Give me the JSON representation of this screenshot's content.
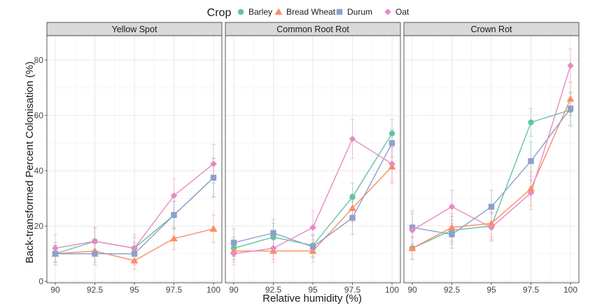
{
  "chart_data": {
    "type": "line",
    "legend": {
      "title": "Crop",
      "placement": "top",
      "entries": [
        "Barley",
        "Bread Wheat",
        "Durum",
        "Oat"
      ]
    },
    "colors": {
      "Barley": "#66c2a5",
      "Bread Wheat": "#fc8d62",
      "Durum": "#8da0cb",
      "Oat": "#e78ac3"
    },
    "markers": {
      "Barley": "circle",
      "Bread Wheat": "triangle",
      "Durum": "square",
      "Oat": "diamond"
    },
    "xlabel": "Relative humidity (%)",
    "ylabel": "Back-transformed Percent Colonisation (%)",
    "x": [
      90,
      92.5,
      95,
      97.5,
      100
    ],
    "x_tick_labels": [
      "90",
      "92.5",
      "95",
      "97.5",
      "100"
    ],
    "y_ticks": [
      0,
      20,
      40,
      60,
      80
    ],
    "y_tick_labels": [
      "0",
      "20",
      "40",
      "60",
      "80"
    ],
    "ylim": [
      0,
      90
    ],
    "grid": true,
    "facets": [
      {
        "title": "Yellow Spot",
        "series": [
          {
            "name": "Barley",
            "values": [
              10,
              14.5,
              12,
              24,
              37.5
            ],
            "err": [
              4,
              5,
              4,
              5,
              7
            ]
          },
          {
            "name": "Bread Wheat",
            "values": [
              10,
              11,
              7.5,
              15.5,
              19
            ],
            "err": [
              3,
              4,
              3,
              4,
              5
            ]
          },
          {
            "name": "Durum",
            "values": [
              10,
              10,
              10,
              24,
              37.5
            ],
            "err": [
              3,
              4,
              4,
              5,
              7
            ]
          },
          {
            "name": "Oat",
            "values": [
              12,
              14.5,
              12,
              31,
              42.5
            ],
            "err": [
              5,
              5,
              5,
              6,
              7
            ]
          }
        ]
      },
      {
        "title": "Common Root Rot",
        "series": [
          {
            "name": "Barley",
            "values": [
              12,
              16,
              13,
              30.5,
              53.5
            ],
            "err": [
              4,
              5,
              4,
              5,
              5
            ]
          },
          {
            "name": "Bread Wheat",
            "values": [
              11,
              11,
              11,
              26.5,
              41.5
            ],
            "err": [
              4,
              4,
              4,
              5,
              6
            ]
          },
          {
            "name": "Durum",
            "values": [
              14,
              17.5,
              12.5,
              23,
              50
            ],
            "err": [
              5,
              5,
              4,
              6,
              5
            ]
          },
          {
            "name": "Oat",
            "values": [
              10,
              12,
              19.5,
              51.5,
              42.5
            ],
            "err": [
              4,
              4,
              6,
              7,
              6
            ]
          }
        ]
      },
      {
        "title": "Crown Rot",
        "series": [
          {
            "name": "Barley",
            "values": [
              12,
              18.5,
              20,
              57.5,
              62
            ],
            "err": [
              4,
              5,
              5,
              5,
              6
            ]
          },
          {
            "name": "Bread Wheat",
            "values": [
              12,
              19.5,
              21,
              33.5,
              66
            ],
            "err": [
              4,
              5,
              5,
              6,
              6
            ]
          },
          {
            "name": "Durum",
            "values": [
              19.5,
              17,
              27,
              43.5,
              62.5
            ],
            "err": [
              6,
              5,
              6,
              7,
              6
            ]
          },
          {
            "name": "Oat",
            "values": [
              18.5,
              27,
              19.5,
              32,
              78
            ],
            "err": [
              6,
              6,
              5,
              6,
              6
            ]
          }
        ]
      }
    ]
  }
}
